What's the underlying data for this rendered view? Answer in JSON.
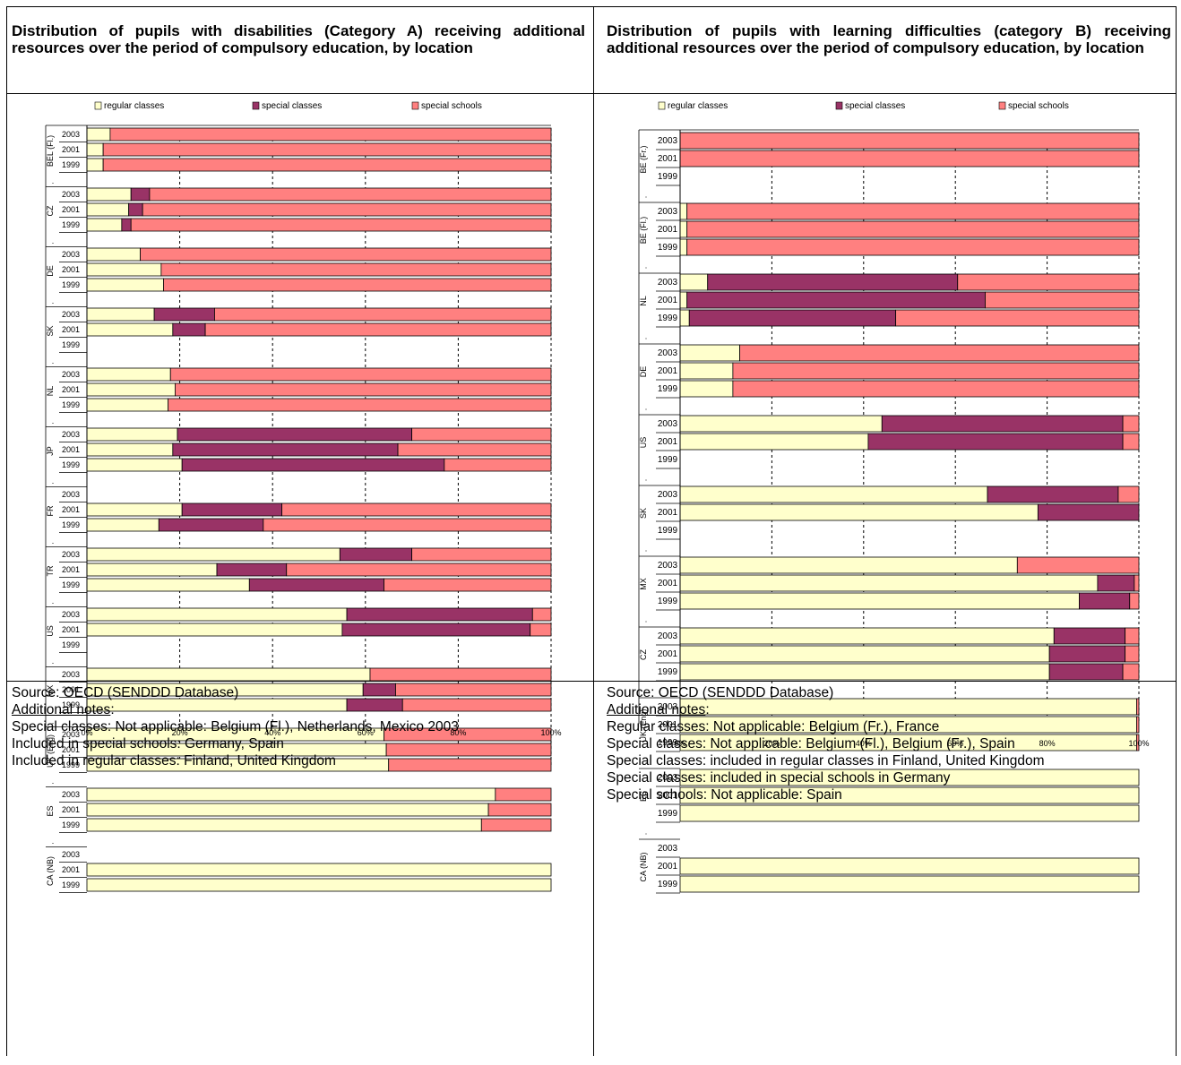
{
  "left": {
    "title": "Distribution of pupils with disabilities (Category A) receiving additional resources over the period of compulsory education, by location",
    "source": "Source: OECD (SENDDD Database)",
    "notes_heading": "Additional notes",
    "notes": [
      "Special classes:  Not applicable: Belgium (Fl.), Netherlands, Mexico 2003",
      "Included in special schools: Germany, Spain",
      "Included in regular classes: Finland, United Kingdom"
    ]
  },
  "right": {
    "title": "Distribution of pupils with learning difficulties (category B) receiving additional resources over the period of compulsory education, by location",
    "source": "Source: OECD (SENDDD Database)",
    "notes_heading": "Additional notes",
    "notes": [
      "Regular classes: Not applicable: Belgium (Fr.), France",
      "Special classes: Not applicable: Belgium (Fl.), Belgium (Fr.), Spain",
      "Special classes: included in regular classes in Finland, United Kingdom",
      "Special classes: included in special schools in Germany",
      "Special schools: Not applicable: Spain"
    ]
  },
  "colors": {
    "regular": "#FFFFCC",
    "special_classes": "#993366",
    "special_schools": "#FF8080"
  },
  "chart_data": [
    {
      "type": "bar",
      "orientation": "horizontal-stacked-100",
      "legend": [
        "regular classes",
        "special classes",
        "special schools"
      ],
      "x_ticks": [
        "0%",
        "20%",
        "40%",
        "60%",
        "80%",
        "100%"
      ],
      "xlim": [
        0,
        100
      ],
      "groups": [
        {
          "label": "BEL (Fl.)",
          "rows": [
            {
              "year": "2003",
              "values": [
                5,
                0,
                95
              ]
            },
            {
              "year": "2001",
              "values": [
                3.5,
                0,
                96.5
              ]
            },
            {
              "year": "1999",
              "values": [
                3.5,
                0,
                96.5
              ]
            }
          ]
        },
        {
          "label": "CZ",
          "rows": [
            {
              "year": "2003",
              "values": [
                9.5,
                4,
                86.5
              ]
            },
            {
              "year": "2001",
              "values": [
                9,
                3,
                88
              ]
            },
            {
              "year": "1999",
              "values": [
                7.5,
                2,
                90.5
              ]
            }
          ]
        },
        {
          "label": "DE",
          "rows": [
            {
              "year": "2003",
              "values": [
                11.5,
                0,
                88.5
              ]
            },
            {
              "year": "2001",
              "values": [
                16,
                0,
                84
              ]
            },
            {
              "year": "1999",
              "values": [
                16.5,
                0,
                83.5
              ]
            }
          ]
        },
        {
          "label": "SK",
          "rows": [
            {
              "year": "2003",
              "values": [
                14.5,
                13,
                72.5
              ]
            },
            {
              "year": "2001",
              "values": [
                18.5,
                7,
                74.5
              ]
            },
            {
              "year": "1999",
              "values": null
            }
          ]
        },
        {
          "label": "NL",
          "rows": [
            {
              "year": "2003",
              "values": [
                18,
                0,
                82
              ]
            },
            {
              "year": "2001",
              "values": [
                19,
                0,
                81
              ]
            },
            {
              "year": "1999",
              "values": [
                17.5,
                0,
                82.5
              ]
            }
          ]
        },
        {
          "label": "JP",
          "rows": [
            {
              "year": "2003",
              "values": [
                19.5,
                50.5,
                30
              ]
            },
            {
              "year": "2001",
              "values": [
                18.5,
                48.5,
                33
              ]
            },
            {
              "year": "1999",
              "values": [
                20.5,
                56.5,
                23
              ]
            }
          ]
        },
        {
          "label": "FR",
          "rows": [
            {
              "year": "2003",
              "values": null
            },
            {
              "year": "2001",
              "values": [
                20.5,
                21.5,
                58
              ]
            },
            {
              "year": "1999",
              "values": [
                15.5,
                22.5,
                62
              ]
            }
          ]
        },
        {
          "label": "TR",
          "rows": [
            {
              "year": "2003",
              "values": [
                54.5,
                15.5,
                30
              ]
            },
            {
              "year": "2001",
              "values": [
                28,
                15,
                57
              ]
            },
            {
              "year": "1999",
              "values": [
                35,
                29,
                36
              ]
            }
          ]
        },
        {
          "label": "US",
          "rows": [
            {
              "year": "2003",
              "values": [
                56,
                40,
                4
              ]
            },
            {
              "year": "2001",
              "values": [
                55,
                40.5,
                4.5
              ]
            },
            {
              "year": "1999",
              "values": null
            }
          ]
        },
        {
          "label": "MX",
          "rows": [
            {
              "year": "2003",
              "values": [
                61,
                0,
                39
              ]
            },
            {
              "year": "2001",
              "values": [
                59.5,
                7,
                33.5
              ]
            },
            {
              "year": "1999",
              "values": [
                56,
                12,
                32
              ]
            }
          ]
        },
        {
          "label": "UK (Eng)",
          "rows": [
            {
              "year": "2003",
              "values": [
                64,
                0,
                36
              ]
            },
            {
              "year": "2001",
              "values": [
                64.5,
                0,
                35.5
              ]
            },
            {
              "year": "1999",
              "values": [
                65,
                0,
                35
              ]
            }
          ]
        },
        {
          "label": "ES",
          "rows": [
            {
              "year": "2003",
              "values": [
                88,
                0,
                12
              ]
            },
            {
              "year": "2001",
              "values": [
                86.5,
                0,
                13.5
              ]
            },
            {
              "year": "1999",
              "values": [
                85,
                0,
                15
              ]
            }
          ]
        },
        {
          "label": "CA (NB)",
          "rows": [
            {
              "year": "2003",
              "values": null
            },
            {
              "year": "2001",
              "values": [
                100,
                0,
                0
              ]
            },
            {
              "year": "1999",
              "values": [
                100,
                0,
                0
              ]
            }
          ]
        }
      ]
    },
    {
      "type": "bar",
      "orientation": "horizontal-stacked-100",
      "legend": [
        "regular classes",
        "special classes",
        "special schools"
      ],
      "x_ticks": [
        "0%",
        "20%",
        "40%",
        "60%",
        "80%",
        "100%"
      ],
      "xlim": [
        0,
        100
      ],
      "groups": [
        {
          "label": "BE (Fr.)",
          "rows": [
            {
              "year": "2003",
              "values": [
                0,
                0,
                100
              ]
            },
            {
              "year": "2001",
              "values": [
                0,
                0,
                100
              ]
            },
            {
              "year": "1999",
              "values": null
            }
          ]
        },
        {
          "label": "BE (Fl.)",
          "rows": [
            {
              "year": "2003",
              "values": [
                1.5,
                0,
                98.5
              ]
            },
            {
              "year": "2001",
              "values": [
                1.5,
                0,
                98.5
              ]
            },
            {
              "year": "1999",
              "values": [
                1.5,
                0,
                98.5
              ]
            }
          ]
        },
        {
          "label": "NL",
          "rows": [
            {
              "year": "2003",
              "values": [
                6,
                54.5,
                39.5
              ]
            },
            {
              "year": "2001",
              "values": [
                1.5,
                65,
                33.5
              ]
            },
            {
              "year": "1999",
              "values": [
                2,
                45,
                53
              ]
            }
          ]
        },
        {
          "label": "DE",
          "rows": [
            {
              "year": "2003",
              "values": [
                13,
                0,
                87
              ]
            },
            {
              "year": "2001",
              "values": [
                11.5,
                0,
                88.5
              ]
            },
            {
              "year": "1999",
              "values": [
                11.5,
                0,
                88.5
              ]
            }
          ]
        },
        {
          "label": "US",
          "rows": [
            {
              "year": "2003",
              "values": [
                44,
                52.5,
                3.5
              ]
            },
            {
              "year": "2001",
              "values": [
                41,
                55.5,
                3.5
              ]
            },
            {
              "year": "1999",
              "values": null
            }
          ]
        },
        {
          "label": "SK",
          "rows": [
            {
              "year": "2003",
              "values": [
                67,
                28.5,
                4.5
              ]
            },
            {
              "year": "2001",
              "values": [
                78,
                22,
                0
              ]
            },
            {
              "year": "1999",
              "values": null
            }
          ]
        },
        {
          "label": "MX",
          "rows": [
            {
              "year": "2003",
              "values": [
                73.5,
                0,
                26.5
              ]
            },
            {
              "year": "2001",
              "values": [
                91,
                8,
                1
              ]
            },
            {
              "year": "1999",
              "values": [
                87,
                11,
                2
              ]
            }
          ]
        },
        {
          "label": "CZ",
          "rows": [
            {
              "year": "2003",
              "values": [
                81.5,
                15.5,
                3
              ]
            },
            {
              "year": "2001",
              "values": [
                80.5,
                16.5,
                3
              ]
            },
            {
              "year": "1999",
              "values": [
                80.5,
                16,
                3.5
              ]
            }
          ]
        },
        {
          "label": "UK (Eng)",
          "rows": [
            {
              "year": "2003",
              "values": [
                99.5,
                0,
                0.5
              ]
            },
            {
              "year": "2001",
              "values": [
                99.5,
                0,
                0.5
              ]
            },
            {
              "year": "1999",
              "values": [
                99.5,
                0,
                0.5
              ]
            }
          ]
        },
        {
          "label": "ES",
          "rows": [
            {
              "year": "2003",
              "values": [
                100,
                0,
                0
              ]
            },
            {
              "year": "2001",
              "values": [
                100,
                0,
                0
              ]
            },
            {
              "year": "1999",
              "values": [
                100,
                0,
                0
              ]
            }
          ]
        },
        {
          "label": "CA (NB)",
          "rows": [
            {
              "year": "2003",
              "values": null
            },
            {
              "year": "2001",
              "values": [
                100,
                0,
                0
              ]
            },
            {
              "year": "1999",
              "values": [
                100,
                0,
                0
              ]
            }
          ]
        }
      ]
    }
  ]
}
